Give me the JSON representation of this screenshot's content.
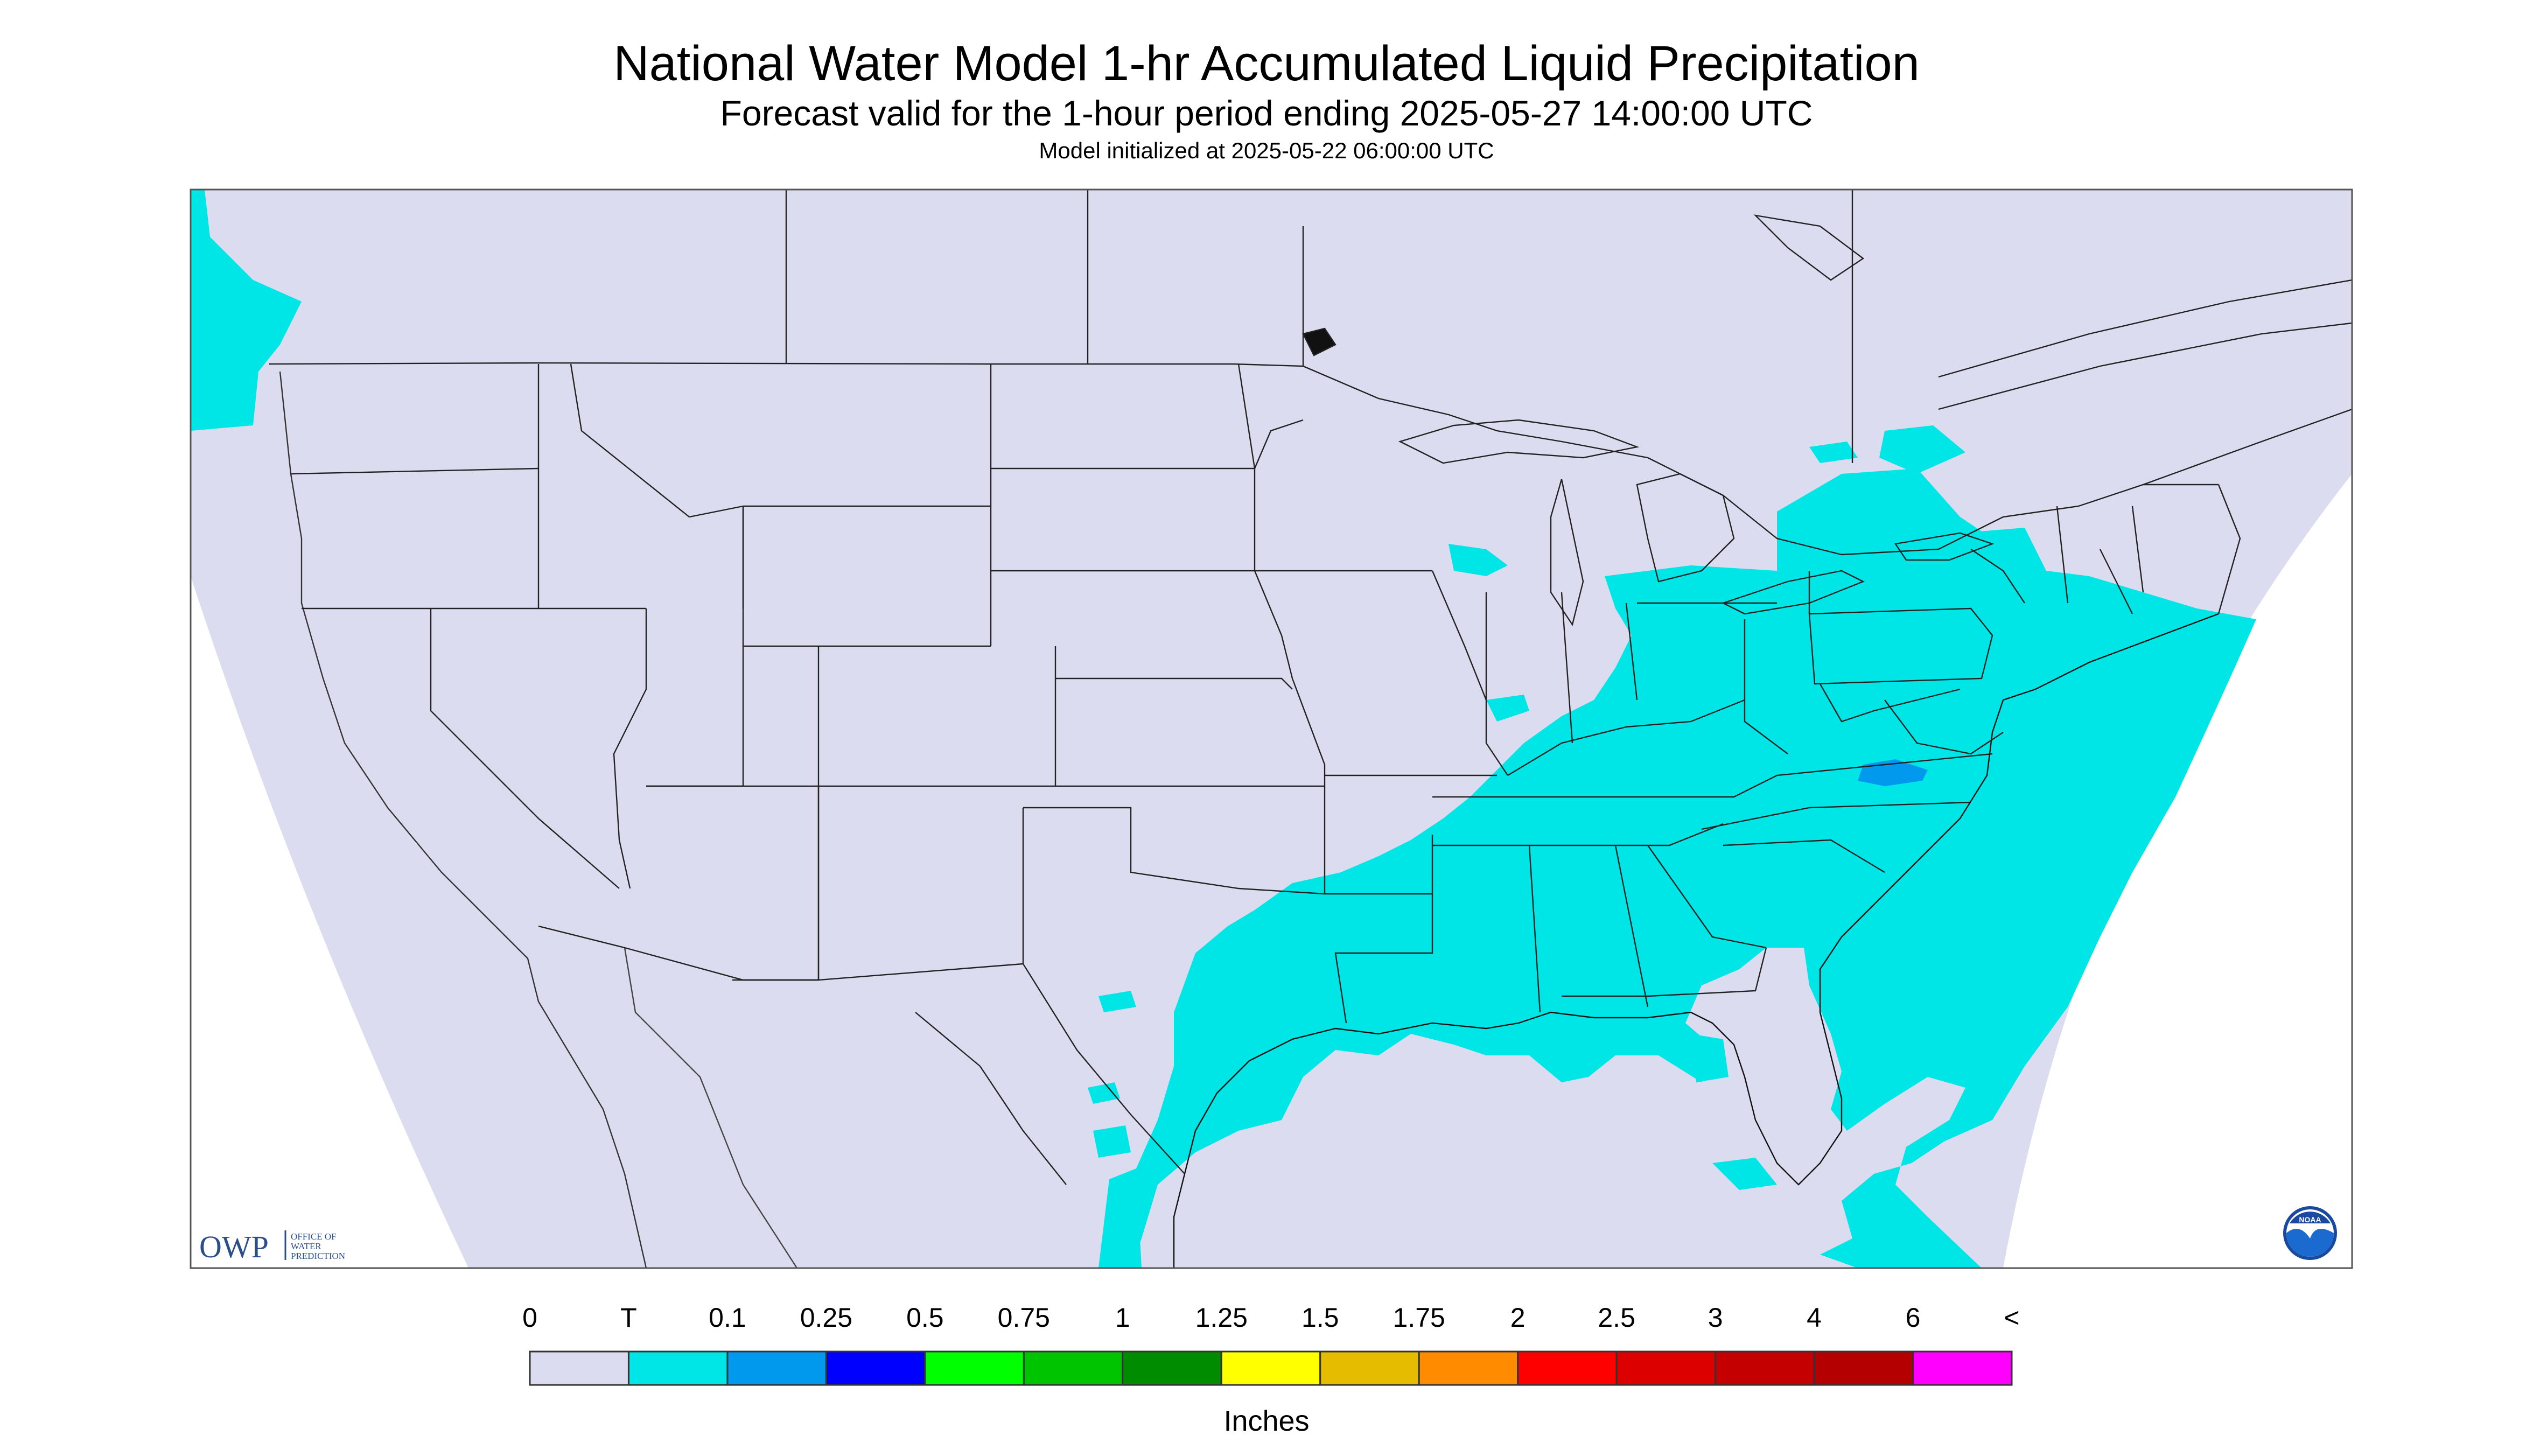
{
  "header": {
    "title": "National Water Model 1-hr Accumulated Liquid Precipitation",
    "subtitle": "Forecast valid for the 1-hour period ending 2025-05-27 14:00:00 UTC",
    "init_line": "Model initialized at 2025-05-22 06:00:00 UTC"
  },
  "logos": {
    "owp_mark": "OWP",
    "owp_text": [
      "OFFICE OF",
      "WATER",
      "PREDICTION"
    ],
    "noaa_mark": "NOAA"
  },
  "legend": {
    "units": "Inches",
    "labels": [
      "0",
      "T",
      "0.1",
      "0.25",
      "0.5",
      "0.75",
      "1",
      "1.25",
      "1.5",
      "1.75",
      "2",
      "2.5",
      "3",
      "4",
      "6",
      "<"
    ],
    "colors": [
      "#dcdcf0",
      "#00e5e5",
      "#0099ee",
      "#0000ff",
      "#00ff00",
      "#00c400",
      "#008c00",
      "#ffff00",
      "#e6bc00",
      "#ff8c00",
      "#ff0000",
      "#dd0000",
      "#c40000",
      "#b40000",
      "#ff00ff",
      "#9955cc"
    ]
  },
  "map": {
    "background_color": "#dcdcf0",
    "precip_trace_color": "#00e5e5",
    "precip_0_1_color": "#0099ee",
    "border_color": "#222222"
  }
}
